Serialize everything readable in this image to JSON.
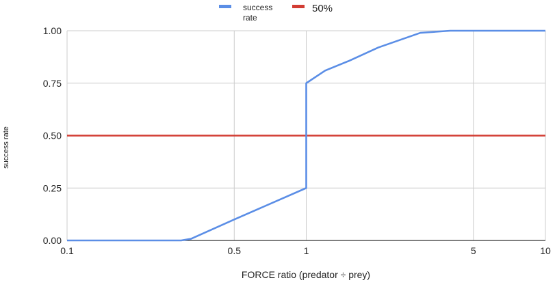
{
  "chart_data": {
    "type": "line",
    "title": "",
    "xlabel": "FORCE ratio (predator ÷  prey)",
    "ylabel": "success rate",
    "xscale": "log",
    "xlim": [
      0.1,
      10
    ],
    "ylim": [
      0,
      1
    ],
    "grid": true,
    "legend_position": "top",
    "x_ticks": [
      {
        "value": 0.1,
        "label": "0.1"
      },
      {
        "value": 0.5,
        "label": "0.5"
      },
      {
        "value": 1,
        "label": "1"
      },
      {
        "value": 5,
        "label": "5"
      },
      {
        "value": 10,
        "label": "10"
      }
    ],
    "y_ticks": [
      {
        "value": 0,
        "label": "0.00"
      },
      {
        "value": 0.25,
        "label": "0.25"
      },
      {
        "value": 0.5,
        "label": "0.50"
      },
      {
        "value": 0.75,
        "label": "0.75"
      },
      {
        "value": 1,
        "label": "1.00"
      }
    ],
    "series": [
      {
        "name": "success rate",
        "name_lines": [
          "success",
          "rate"
        ],
        "color": "#5b8ee6",
        "x": [
          0.1,
          0.3,
          0.33,
          0.5,
          1,
          1,
          1.2,
          1.5,
          2,
          3,
          4,
          5,
          10
        ],
        "y": [
          0,
          0,
          0.008,
          0.1,
          0.25,
          0.75,
          0.81,
          0.855,
          0.92,
          0.99,
          1,
          1,
          1
        ]
      },
      {
        "name": "50%",
        "name_lines": [
          "50%"
        ],
        "color": "#d23d33",
        "x": [
          0.1,
          10
        ],
        "y": [
          0.5,
          0.5
        ]
      }
    ]
  }
}
